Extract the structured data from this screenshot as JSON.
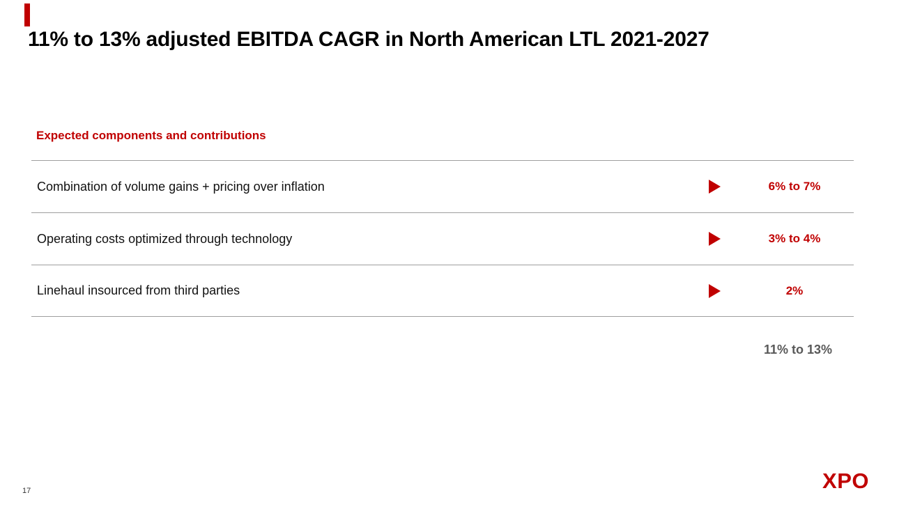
{
  "slide": {
    "title": "11% to 13% adjusted EBITDA CAGR in North American LTL 2021-2027",
    "section_heading": "Expected components and contributions",
    "rows": [
      {
        "label": "Combination of volume gains + pricing over inflation",
        "value": "6% to 7%"
      },
      {
        "label": "Operating costs optimized through technology",
        "value": "3% to 4%"
      },
      {
        "label": "Linehaul insourced from third parties",
        "value": "2%"
      }
    ],
    "total": "11% to 13%",
    "page_number": "17",
    "logo": "XPO",
    "colors": {
      "accent_red": "#c00000",
      "title_black": "#000000",
      "total_gray": "#595959",
      "line_gray": "#9e9e9e"
    }
  }
}
